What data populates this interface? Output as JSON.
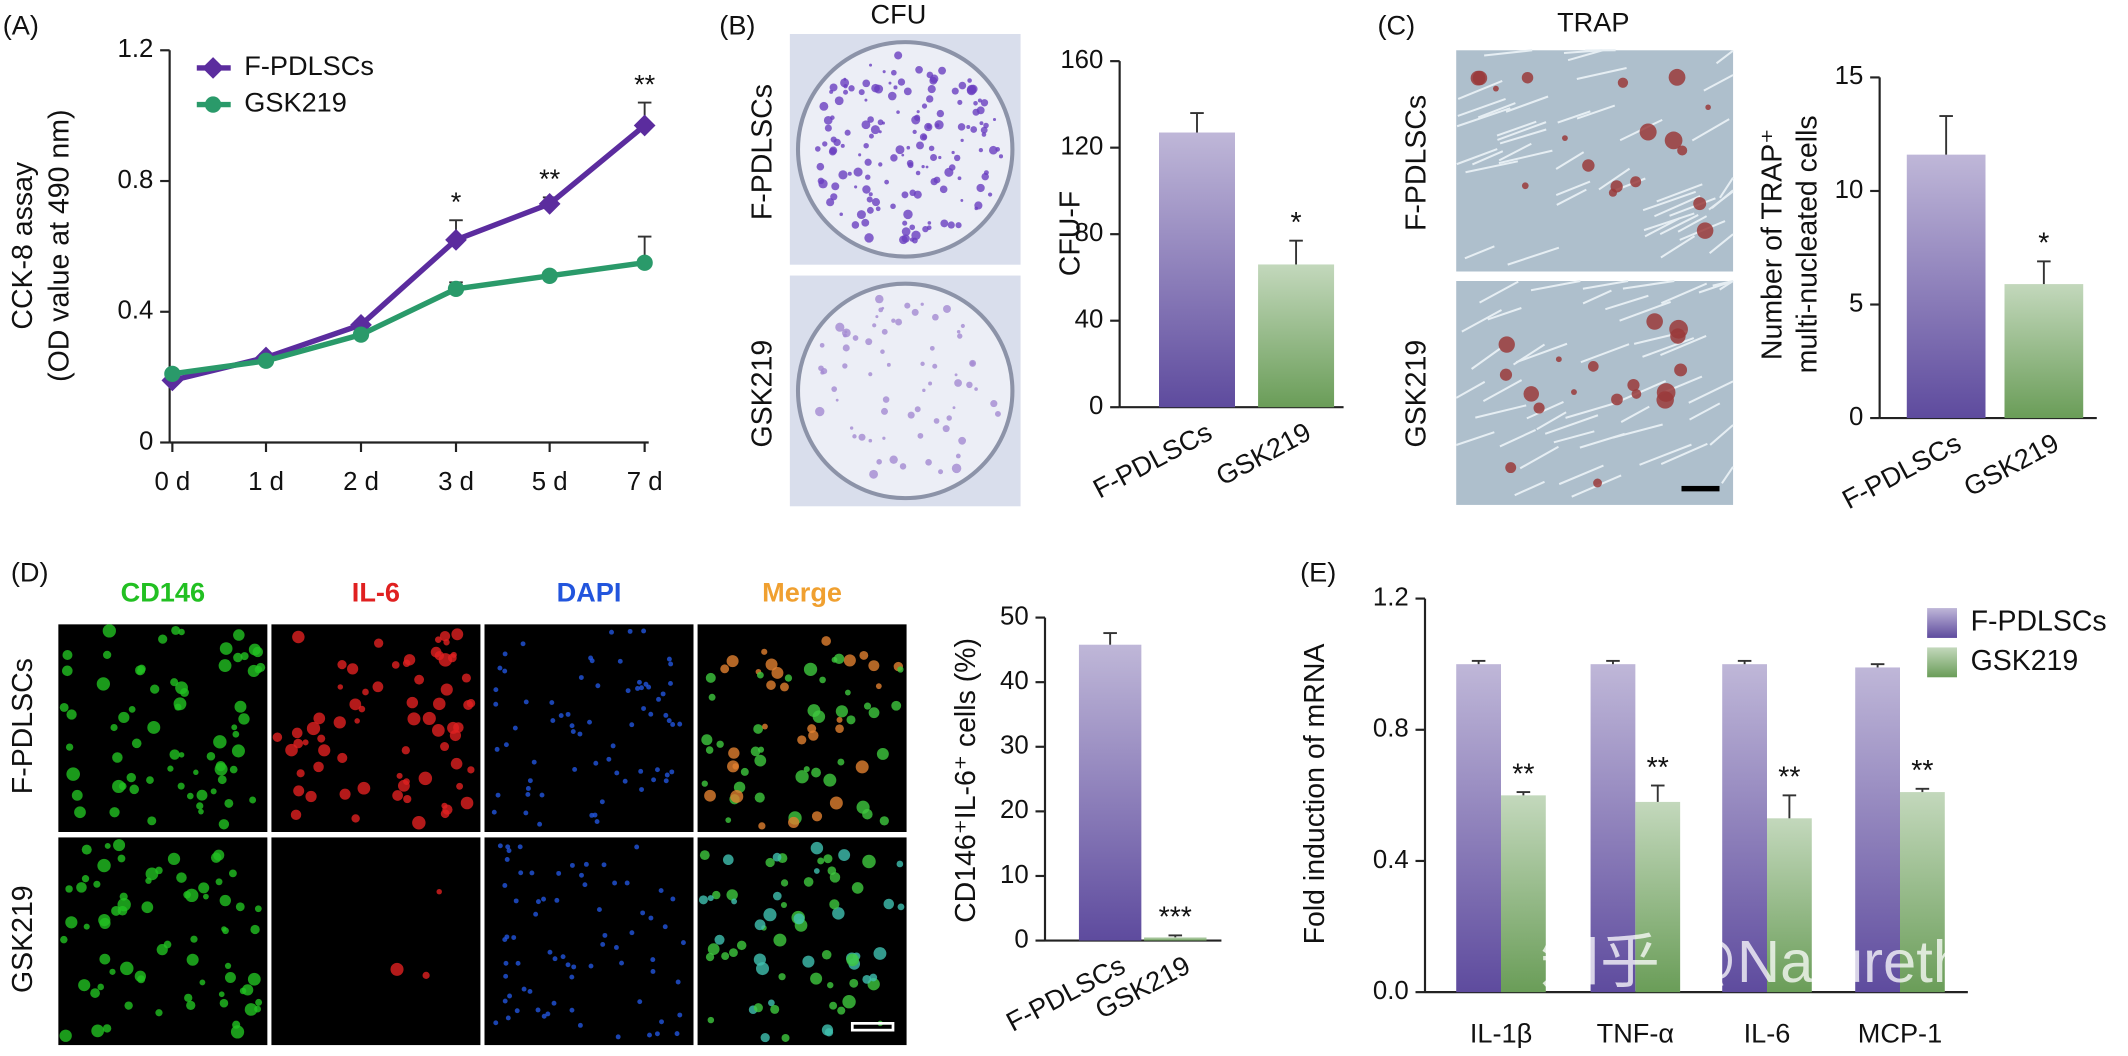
{
  "chart_data": [
    {
      "type": "line",
      "panel": "(A)",
      "ylabel": [
        "CCK-8 assay",
        "(OD value at 490 nm)"
      ],
      "categories": [
        "0 d",
        "1 d",
        "2 d",
        "3 d",
        "5 d",
        "7 d"
      ],
      "series": [
        {
          "name": "F-PDLSCs",
          "color": "#5b2c9e",
          "marker": "diamond",
          "values": [
            0.19,
            0.26,
            0.36,
            0.62,
            0.73,
            0.97
          ],
          "errors": [
            0.01,
            0.01,
            0.01,
            0.06,
            0.02,
            0.07
          ]
        },
        {
          "name": "GSK219",
          "color": "#2a9a6a",
          "marker": "circle",
          "values": [
            0.21,
            0.25,
            0.33,
            0.47,
            0.51,
            0.55
          ],
          "errors": [
            0.01,
            0.01,
            0.01,
            0.02,
            0.01,
            0.08
          ]
        }
      ],
      "significance": [
        null,
        null,
        null,
        "*",
        "**",
        "**"
      ],
      "ylim": [
        0,
        1.2
      ],
      "yticks": [
        0,
        0.4,
        0.8,
        1.2
      ],
      "legend": "top-left"
    },
    {
      "type": "bar",
      "panel": "(B)",
      "image_title": "CFU",
      "image_rows": [
        "F-PDLSCs",
        "GSK219"
      ],
      "ylabel": "CFU-F",
      "categories": [
        "F-PDLSCs",
        "GSK219"
      ],
      "values": [
        127,
        66
      ],
      "errors": [
        9,
        11
      ],
      "significance": [
        null,
        "*"
      ],
      "colors": [
        "#5e4b9e",
        "#6a9d58"
      ],
      "ylim": [
        0,
        160
      ],
      "yticks": [
        0,
        40,
        80,
        120,
        160
      ]
    },
    {
      "type": "bar",
      "panel": "(C)",
      "image_title": "TRAP",
      "image_rows": [
        "F-PDLSCs",
        "GSK219"
      ],
      "ylabel": [
        "Number of TRAP⁺",
        "multi-nucleated cells"
      ],
      "categories": [
        "F-PDLSCs",
        "GSK219"
      ],
      "values": [
        11.6,
        5.9
      ],
      "errors": [
        1.7,
        1.0
      ],
      "significance": [
        null,
        "*"
      ],
      "colors": [
        "#5e4b9e",
        "#6a9d58"
      ],
      "ylim": [
        0,
        15
      ],
      "yticks": [
        0,
        5,
        10,
        15
      ]
    },
    {
      "type": "bar",
      "panel": "(D)",
      "image_columns": [
        {
          "name": "CD146",
          "color": "#22c022"
        },
        {
          "name": "IL-6",
          "color": "#e02020"
        },
        {
          "name": "DAPI",
          "color": "#2255dd"
        },
        {
          "name": "Merge",
          "color": "#f0a030"
        }
      ],
      "image_rows": [
        "F-PDLSCs",
        "GSK219"
      ],
      "ylabel": "CD146⁺IL-6⁺ cells (%)",
      "categories": [
        "F-PDLSCs",
        "GSK219"
      ],
      "values": [
        45.8,
        0.5
      ],
      "errors": [
        1.8,
        0.3
      ],
      "significance": [
        null,
        "***"
      ],
      "colors": [
        "#5e4b9e",
        "#6a9d58"
      ],
      "ylim": [
        0,
        50
      ],
      "yticks": [
        0,
        10,
        20,
        30,
        40,
        50
      ]
    },
    {
      "type": "grouped_bar",
      "panel": "(E)",
      "ylabel": "Fold induction of mRNA",
      "categories": [
        "IL-1β",
        "TNF-α",
        "IL-6",
        "MCP-1"
      ],
      "series": [
        {
          "name": "F-PDLSCs",
          "color": "#5e4b9e",
          "values": [
            1.0,
            1.0,
            1.0,
            0.99
          ],
          "errors": [
            0.01,
            0.01,
            0.01,
            0.01
          ]
        },
        {
          "name": "GSK219",
          "color": "#6a9d58",
          "values": [
            0.6,
            0.58,
            0.53,
            0.61
          ],
          "errors": [
            0.01,
            0.05,
            0.07,
            0.01
          ],
          "significance": [
            "**",
            "**",
            "**",
            "**"
          ]
        }
      ],
      "ylim": [
        0,
        1.2
      ],
      "yticks": [
        {
          "value": 0,
          "label": "0.0"
        },
        0.4,
        0.8,
        1.2
      ],
      "legend": "top-right"
    }
  ],
  "watermark": "知乎 @Naturethink"
}
